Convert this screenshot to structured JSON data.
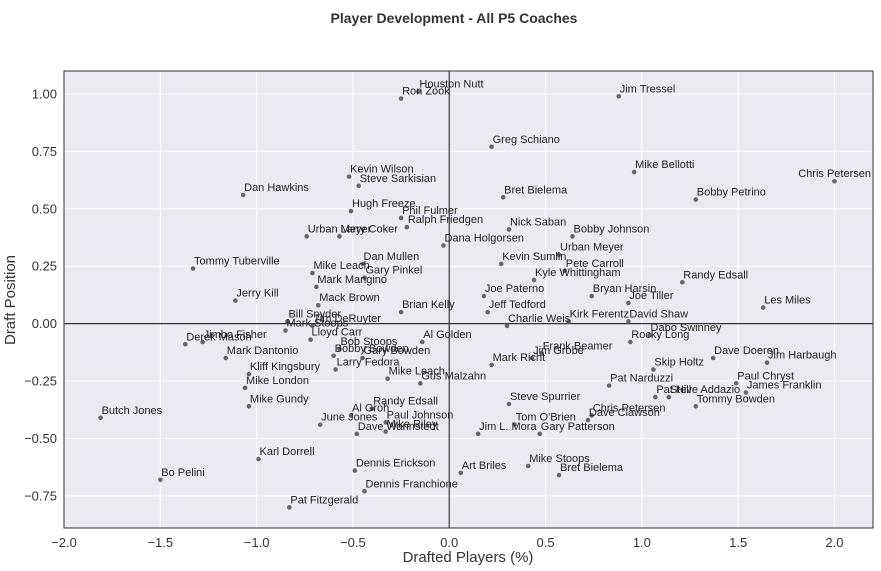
{
  "chart_data": {
    "type": "scatter",
    "title": "Player Development - All P5 Coaches",
    "xlabel": "Drafted Players (%)",
    "ylabel": "Draft Position",
    "xlim": [
      -2.0,
      2.2
    ],
    "ylim": [
      -0.89,
      1.1
    ],
    "xticks": [
      -2.0,
      -1.5,
      -1.0,
      -0.5,
      0.0,
      0.5,
      1.0,
      1.5,
      2.0
    ],
    "yticks": [
      -0.75,
      -0.5,
      -0.25,
      0.0,
      0.25,
      0.5,
      0.75,
      1.0
    ],
    "xtick_labels": [
      "−2.0",
      "−1.5",
      "−1.0",
      "−0.5",
      "0.0",
      "0.5",
      "1.0",
      "1.5",
      "2.0"
    ],
    "ytick_labels": [
      "−0.75",
      "−0.50",
      "−0.25",
      "0.00",
      "0.25",
      "0.50",
      "0.75",
      "1.00"
    ],
    "grid": true,
    "reference_lines": {
      "x": 0.0,
      "y": 0.0
    },
    "colors": {
      "background": "#eaeaf2",
      "point": "#666666",
      "reference_line": "#333333",
      "grid": "#ffffff"
    },
    "points": [
      {
        "name": "Houston Nutt",
        "x": -0.16,
        "y": 1.01
      },
      {
        "name": "Jim Tressel",
        "x": 0.88,
        "y": 0.99
      },
      {
        "name": "Ron Zook",
        "x": -0.25,
        "y": 0.98
      },
      {
        "name": "Greg Schiano",
        "x": 0.22,
        "y": 0.77
      },
      {
        "name": "Mike Bellotti",
        "x": 0.96,
        "y": 0.66
      },
      {
        "name": "Chris Petersen",
        "x": 2.0,
        "y": 0.62
      },
      {
        "name": "Kevin Wilson",
        "x": -0.52,
        "y": 0.64
      },
      {
        "name": "Steve Sarkisian",
        "x": -0.47,
        "y": 0.6
      },
      {
        "name": "Dan Hawkins",
        "x": -1.07,
        "y": 0.56
      },
      {
        "name": "Bret Bielema",
        "x": 0.28,
        "y": 0.55
      },
      {
        "name": "Bobby Petrino",
        "x": 1.28,
        "y": 0.54
      },
      {
        "name": "Hugh Freeze",
        "x": -0.51,
        "y": 0.49
      },
      {
        "name": "Phil Fulmer",
        "x": -0.25,
        "y": 0.46
      },
      {
        "name": "Larry Coker",
        "x": -0.57,
        "y": 0.38
      },
      {
        "name": "Ralph Friedgen",
        "x": -0.22,
        "y": 0.42
      },
      {
        "name": "Nick Saban",
        "x": 0.31,
        "y": 0.41
      },
      {
        "name": "Bobby Johnson",
        "x": 0.64,
        "y": 0.38
      },
      {
        "name": "Urban Meyer",
        "x": -0.74,
        "y": 0.38
      },
      {
        "name": "Dana Holgorsen",
        "x": -0.03,
        "y": 0.34
      },
      {
        "name": "Urban Meyer",
        "x": 0.57,
        "y": 0.3
      },
      {
        "name": "Dan Mullen",
        "x": -0.45,
        "y": 0.26
      },
      {
        "name": "Kevin Sumlin",
        "x": 0.27,
        "y": 0.26
      },
      {
        "name": "Pete Carroll",
        "x": 0.6,
        "y": 0.23
      },
      {
        "name": "Mike Leach",
        "x": -0.71,
        "y": 0.22
      },
      {
        "name": "Tommy Tuberville",
        "x": -1.33,
        "y": 0.24
      },
      {
        "name": "Kyle Whittingham",
        "x": 0.44,
        "y": 0.19
      },
      {
        "name": "Randy Edsall",
        "x": 1.21,
        "y": 0.18
      },
      {
        "name": "Mark Mangino",
        "x": -0.69,
        "y": 0.16
      },
      {
        "name": "Gary Pinkel",
        "x": -0.44,
        "y": 0.2
      },
      {
        "name": "Bryan Harsin",
        "x": 0.74,
        "y": 0.12
      },
      {
        "name": "Joe Paterno",
        "x": 0.18,
        "y": 0.12
      },
      {
        "name": "Jerry Kill",
        "x": -1.11,
        "y": 0.1
      },
      {
        "name": "Mack Brown",
        "x": -0.68,
        "y": 0.08
      },
      {
        "name": "Joe Tiller",
        "x": 0.93,
        "y": 0.09
      },
      {
        "name": "Les Miles",
        "x": 1.63,
        "y": 0.07
      },
      {
        "name": "Jeff Tedford",
        "x": 0.2,
        "y": 0.05
      },
      {
        "name": "Brian Kelly",
        "x": -0.25,
        "y": 0.05
      },
      {
        "name": "Bill Snyder",
        "x": -0.84,
        "y": 0.01
      },
      {
        "name": "Tim DeRuyter",
        "x": -0.71,
        "y": -0.01
      },
      {
        "name": "David Shaw",
        "x": 0.93,
        "y": 0.01
      },
      {
        "name": "Kirk Ferentz",
        "x": 0.62,
        "y": 0.01
      },
      {
        "name": "Charlie Weis",
        "x": 0.3,
        "y": -0.01
      },
      {
        "name": "Mark Stoops",
        "x": -0.85,
        "y": -0.03
      },
      {
        "name": "Dabo Swinney",
        "x": 1.04,
        "y": -0.05
      },
      {
        "name": "Derek Mason",
        "x": -1.37,
        "y": -0.09
      },
      {
        "name": "Jimbo Fisher",
        "x": -1.28,
        "y": -0.08
      },
      {
        "name": "Lloyd Carr",
        "x": -0.72,
        "y": -0.07
      },
      {
        "name": "Al Golden",
        "x": -0.14,
        "y": -0.08
      },
      {
        "name": "Rocky Long",
        "x": 0.94,
        "y": -0.08
      },
      {
        "name": "Bob Stoops",
        "x": -0.57,
        "y": -0.11
      },
      {
        "name": "Frank Beamer",
        "x": 0.48,
        "y": -0.13
      },
      {
        "name": "Gary Bowden",
        "x": -0.45,
        "y": -0.15
      },
      {
        "name": "Dave Doeren",
        "x": 1.37,
        "y": -0.15
      },
      {
        "name": "Mark Richt",
        "x": 0.22,
        "y": -0.18
      },
      {
        "name": "Jim Grobe",
        "x": 0.43,
        "y": -0.15
      },
      {
        "name": "Bobby Bowden",
        "x": -0.6,
        "y": -0.14
      },
      {
        "name": "Jim Harbaugh",
        "x": 1.65,
        "y": -0.17
      },
      {
        "name": "Mark Dantonio",
        "x": -1.16,
        "y": -0.15
      },
      {
        "name": "Larry Fedora",
        "x": -0.59,
        "y": -0.2
      },
      {
        "name": "Kliff Kingsbury",
        "x": -1.04,
        "y": -0.22
      },
      {
        "name": "Skip Holtz",
        "x": 1.06,
        "y": -0.2
      },
      {
        "name": "Mike Leach",
        "x": -0.32,
        "y": -0.24
      },
      {
        "name": "Gus Malzahn",
        "x": -0.15,
        "y": -0.26
      },
      {
        "name": "Pat Narduzzi",
        "x": 0.83,
        "y": -0.27
      },
      {
        "name": "Paul Chryst",
        "x": 1.49,
        "y": -0.26
      },
      {
        "name": "Mike London",
        "x": -1.06,
        "y": -0.28
      },
      {
        "name": "James Franklin",
        "x": 1.54,
        "y": -0.3
      },
      {
        "name": "Pat Hill",
        "x": 1.07,
        "y": -0.32
      },
      {
        "name": "Steve Addazio",
        "x": 1.14,
        "y": -0.32
      },
      {
        "name": "Steve Spurrier",
        "x": 0.31,
        "y": -0.35
      },
      {
        "name": "Randy Edsall",
        "x": -0.4,
        "y": -0.37
      },
      {
        "name": "Butch Jones",
        "x": -1.81,
        "y": -0.41
      },
      {
        "name": "Mike Gundy",
        "x": -1.04,
        "y": -0.36
      },
      {
        "name": "Al Groh",
        "x": -0.51,
        "y": -0.4
      },
      {
        "name": "Chris Petersen",
        "x": 0.74,
        "y": -0.4
      },
      {
        "name": "Tommy Bowden",
        "x": 1.28,
        "y": -0.36
      },
      {
        "name": "Tom O'Brien",
        "x": 0.34,
        "y": -0.44
      },
      {
        "name": "Paul Johnson",
        "x": -0.33,
        "y": -0.43
      },
      {
        "name": "Dave Clawson",
        "x": 0.72,
        "y": -0.42
      },
      {
        "name": "June Jones",
        "x": -0.67,
        "y": -0.44
      },
      {
        "name": "Mike Riley",
        "x": -0.33,
        "y": -0.47
      },
      {
        "name": "Gary Patterson",
        "x": 0.47,
        "y": -0.48
      },
      {
        "name": "Dave Wannstedt",
        "x": -0.48,
        "y": -0.48
      },
      {
        "name": "Jim L. Mora",
        "x": 0.15,
        "y": -0.48
      },
      {
        "name": "Karl Dorrell",
        "x": -0.99,
        "y": -0.59
      },
      {
        "name": "Mike Stoops",
        "x": 0.41,
        "y": -0.62
      },
      {
        "name": "Dennis Erickson",
        "x": -0.49,
        "y": -0.64
      },
      {
        "name": "Art Briles",
        "x": 0.06,
        "y": -0.65
      },
      {
        "name": "Bo Pelini",
        "x": -1.5,
        "y": -0.68
      },
      {
        "name": "Bret Bielema",
        "x": 0.57,
        "y": -0.66
      },
      {
        "name": "Dennis Franchione",
        "x": -0.44,
        "y": -0.73
      },
      {
        "name": "Pat Fitzgerald",
        "x": -0.83,
        "y": -0.8
      }
    ]
  }
}
